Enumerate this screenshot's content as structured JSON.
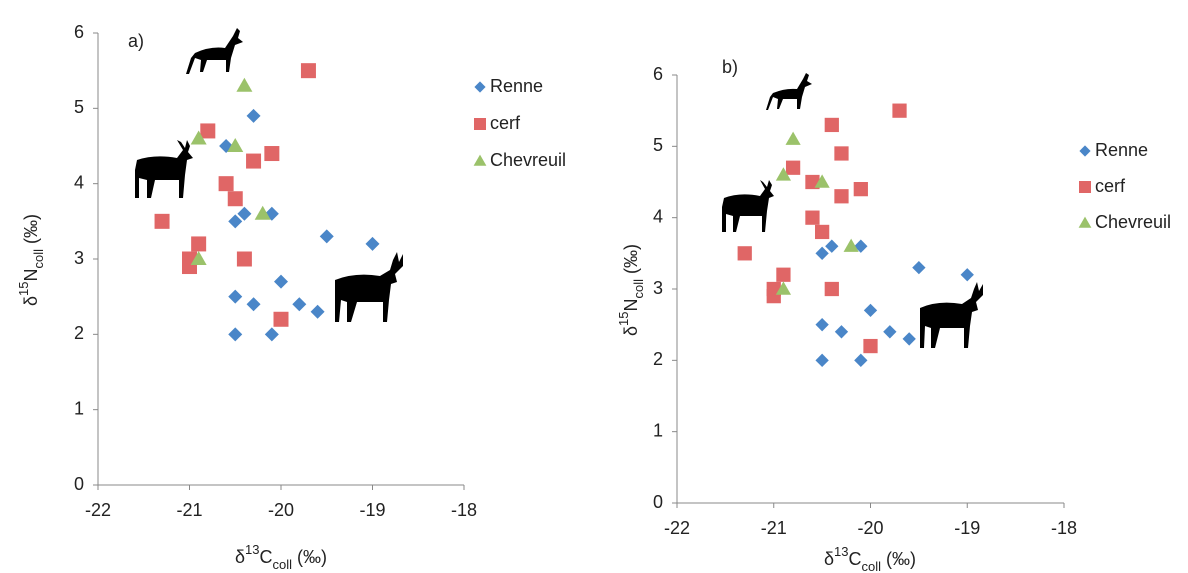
{
  "chart_data": [
    {
      "type": "scatter",
      "annotation": "a)",
      "x_label": [
        "δ",
        "13",
        "C",
        "coll",
        " (‰)"
      ],
      "y_label": [
        "δ",
        "15",
        "N",
        "coll",
        " (‰)"
      ],
      "xlim": [
        -22,
        -18
      ],
      "xticks": [
        -22,
        -21,
        -20,
        -19,
        -18
      ],
      "ylim": [
        0,
        6
      ],
      "yticks": [
        0,
        1,
        2,
        3,
        4,
        5,
        6
      ],
      "legend": "right",
      "grid": false,
      "series": [
        {
          "name": "Renne",
          "color": "#4a86c8",
          "marker": "diamond",
          "x": [
            -20.3,
            -20.6,
            -20.4,
            -20.5,
            -20.1,
            -19.5,
            -19.0,
            -20.0,
            -20.5,
            -20.3,
            -19.8,
            -19.6,
            -20.5,
            -20.1
          ],
          "values": [
            4.9,
            4.5,
            3.6,
            3.5,
            3.6,
            3.3,
            3.2,
            2.7,
            2.5,
            2.4,
            2.4,
            2.3,
            2.0,
            2.0
          ]
        },
        {
          "name": "cerf",
          "color": "#e06666",
          "marker": "square",
          "x": [
            -19.7,
            -20.8,
            -20.6,
            -20.3,
            -20.1,
            -20.5,
            -21.3,
            -20.9,
            -21.0,
            -21.0,
            -20.4,
            -20.0
          ],
          "values": [
            5.5,
            4.7,
            4.0,
            4.3,
            4.4,
            3.8,
            3.5,
            3.2,
            3.0,
            2.9,
            3.0,
            2.2
          ]
        },
        {
          "name": "Chevreuil",
          "color": "#9bc26a",
          "marker": "triangle",
          "x": [
            -20.4,
            -20.9,
            -20.5,
            -20.2,
            -20.9
          ],
          "values": [
            5.3,
            4.6,
            4.5,
            3.6,
            3.0
          ]
        }
      ]
    },
    {
      "type": "scatter",
      "annotation": "b)",
      "x_label": [
        "δ",
        "13",
        "C",
        "coll",
        " (‰)"
      ],
      "y_label": [
        "δ",
        "15",
        "N",
        "coll",
        " (‰)"
      ],
      "xlim": [
        -22,
        -18
      ],
      "xticks": [
        -22,
        -21,
        -20,
        -19,
        -18
      ],
      "ylim": [
        0,
        6
      ],
      "yticks": [
        0,
        1,
        2,
        3,
        4,
        5,
        6
      ],
      "legend": "right",
      "grid": false,
      "series": [
        {
          "name": "Renne",
          "color": "#4a86c8",
          "marker": "diamond",
          "x": [
            -19.0,
            -19.5,
            -20.1,
            -20.4,
            -20.5,
            -20.0,
            -20.5,
            -20.3,
            -19.8,
            -19.6,
            -20.5,
            -20.1
          ],
          "values": [
            3.2,
            3.3,
            3.6,
            3.6,
            3.5,
            2.7,
            2.5,
            2.4,
            2.4,
            2.3,
            2.0,
            2.0
          ]
        },
        {
          "name": "cerf",
          "color": "#e06666",
          "marker": "square",
          "x": [
            -19.7,
            -20.4,
            -20.3,
            -20.6,
            -20.1,
            -20.3,
            -20.8,
            -20.6,
            -20.5,
            -21.3,
            -20.9,
            -21.0,
            -21.0,
            -20.4,
            -20.0
          ],
          "values": [
            5.5,
            5.3,
            4.9,
            4.5,
            4.4,
            4.3,
            4.7,
            4.0,
            3.8,
            3.5,
            3.2,
            3.0,
            2.9,
            3.0,
            2.2
          ]
        },
        {
          "name": "Chevreuil",
          "color": "#9bc26a",
          "marker": "triangle",
          "x": [
            -20.8,
            -20.9,
            -20.5,
            -20.2,
            -20.9
          ],
          "values": [
            5.1,
            4.6,
            4.5,
            3.6,
            3.0
          ]
        }
      ]
    }
  ]
}
